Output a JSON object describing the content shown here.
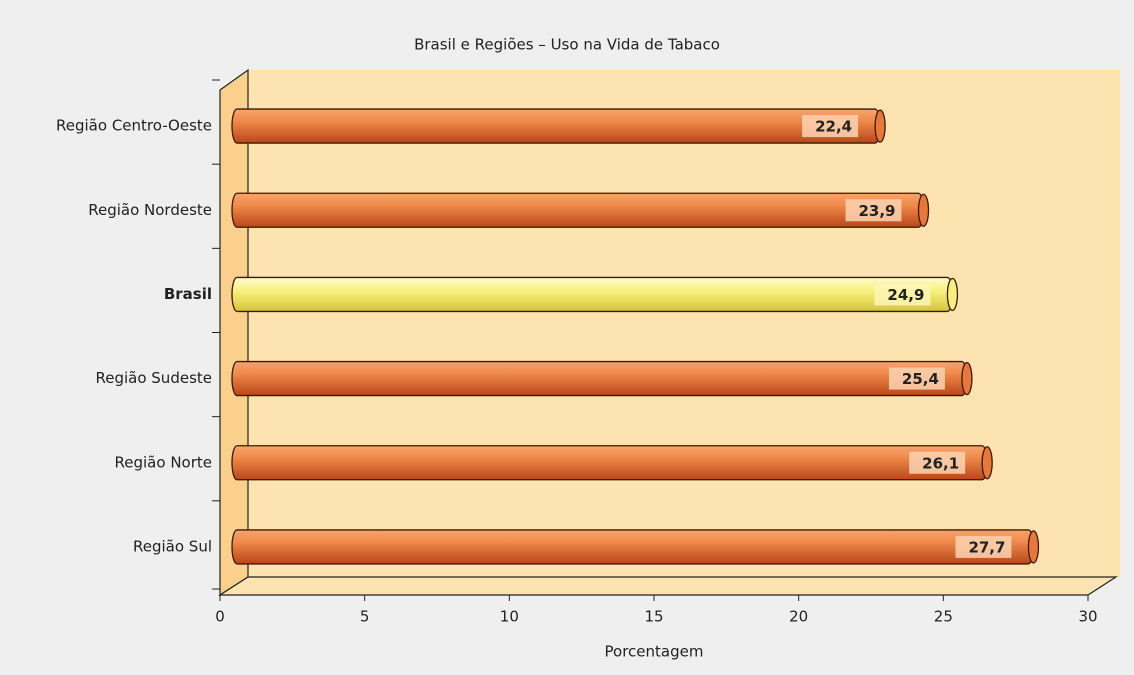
{
  "chart_data": {
    "type": "bar",
    "orientation": "horizontal",
    "title": "Brasil e Regiões – Uso na Vida de Tabaco",
    "categories": [
      "Região Centro-Oeste",
      "Região Nordeste",
      "Brasil",
      "Região Sudeste",
      "Região Norte",
      "Região Sul"
    ],
    "values": [
      22.4,
      23.9,
      24.9,
      25.4,
      26.1,
      27.7
    ],
    "value_labels": [
      "22,4",
      "23,9",
      "24,9",
      "25,4",
      "26,1",
      "27,7"
    ],
    "color": "#e8773a",
    "highlight": 2,
    "highlight_color": "#f7f07c",
    "xlabel": "Porcentagem",
    "xlim": [
      0,
      30
    ],
    "xticks": [
      0,
      5,
      10,
      15,
      20,
      25,
      30
    ]
  }
}
